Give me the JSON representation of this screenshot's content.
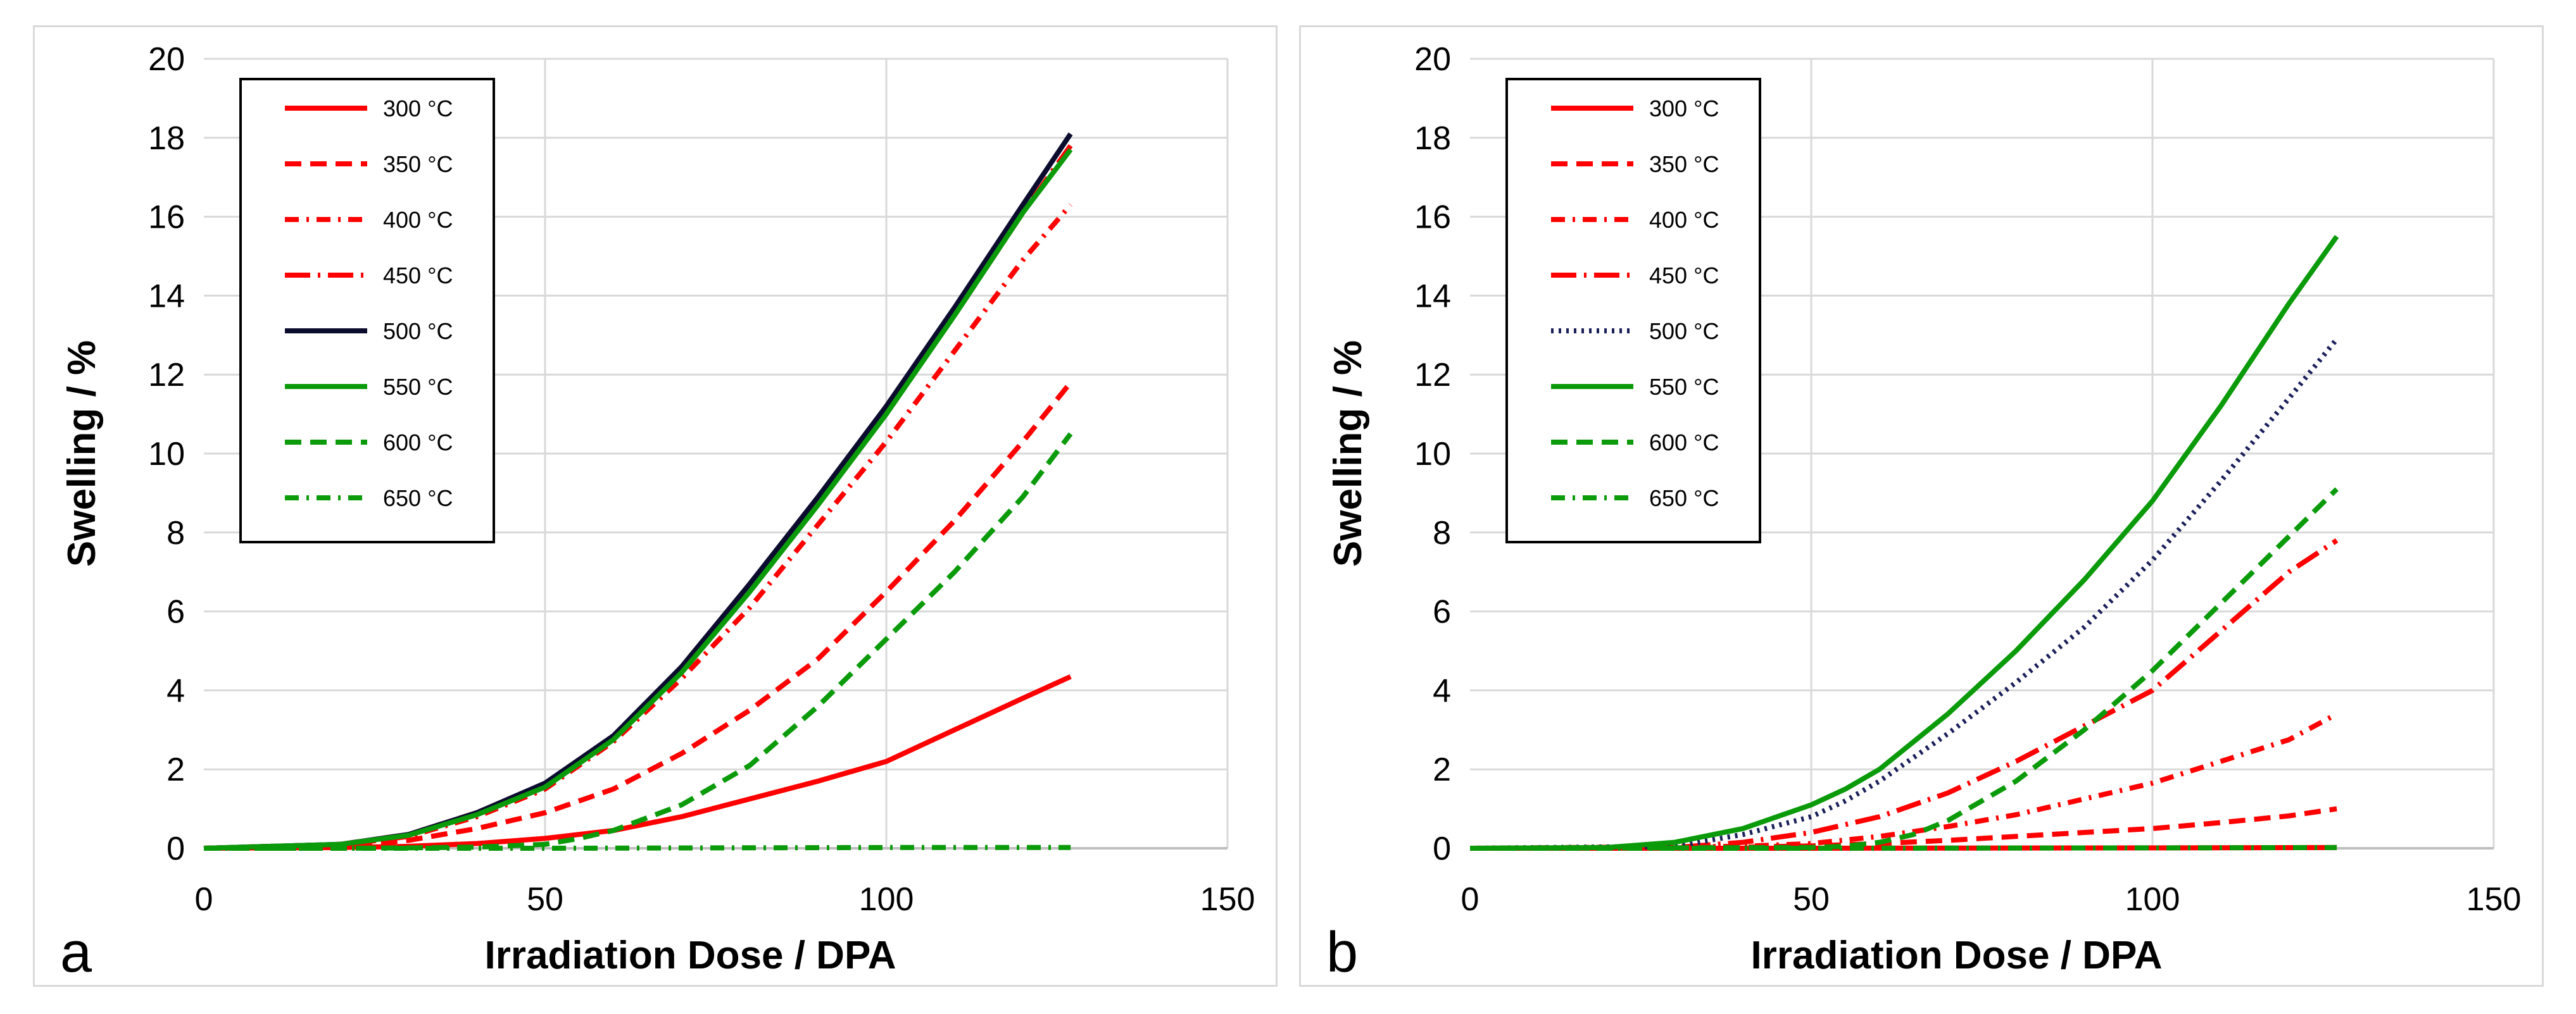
{
  "chart_data": [
    {
      "type": "line",
      "panel_label": "a",
      "xlabel": "Irradiation Dose / DPA",
      "ylabel": "Swelling / %",
      "xlim": [
        0,
        150
      ],
      "ylim": [
        0,
        20
      ],
      "xticks": [
        0,
        50,
        100,
        150
      ],
      "yticks": [
        0,
        2,
        4,
        6,
        8,
        10,
        12,
        14,
        16,
        18,
        20
      ],
      "grid": true,
      "legend_position": "top-left",
      "series": [
        {
          "name": "300 °C",
          "color": "#ff0000",
          "dash": "solid",
          "x": [
            0,
            20,
            30,
            40,
            50,
            60,
            70,
            80,
            90,
            100,
            110,
            120,
            127
          ],
          "y": [
            0,
            0.02,
            0.05,
            0.12,
            0.25,
            0.45,
            0.8,
            1.25,
            1.7,
            2.2,
            3.0,
            3.8,
            4.35
          ]
        },
        {
          "name": "350 °C",
          "color": "#ff0000",
          "dash": "dashed",
          "x": [
            0,
            20,
            30,
            40,
            50,
            60,
            70,
            80,
            90,
            100,
            110,
            120,
            127
          ],
          "y": [
            0,
            0.05,
            0.2,
            0.5,
            0.9,
            1.5,
            2.4,
            3.5,
            4.8,
            6.5,
            8.3,
            10.3,
            11.8
          ]
        },
        {
          "name": "400 °C",
          "color": "#ff0000",
          "dash": "dashdot",
          "x": [
            0,
            20,
            30,
            40,
            50,
            60,
            70,
            80,
            90,
            100,
            110,
            120,
            127
          ],
          "y": [
            0,
            0.08,
            0.3,
            0.8,
            1.5,
            2.7,
            4.3,
            6.1,
            8.2,
            10.3,
            12.6,
            14.9,
            16.3
          ]
        },
        {
          "name": "450 °C",
          "color": "#ff0000",
          "dash": "longdashdot",
          "x": [
            0,
            20,
            30,
            40,
            50,
            60,
            70,
            80,
            90,
            100,
            110,
            120,
            127
          ],
          "y": [
            0,
            0.1,
            0.35,
            0.9,
            1.6,
            2.8,
            4.5,
            6.6,
            8.8,
            11.1,
            13.5,
            16.1,
            17.8
          ]
        },
        {
          "name": "500 °C",
          "color": "#0b0b2e",
          "dash": "solid",
          "x": [
            0,
            20,
            30,
            40,
            50,
            60,
            70,
            80,
            90,
            100,
            110,
            120,
            127
          ],
          "y": [
            0,
            0.1,
            0.35,
            0.9,
            1.65,
            2.85,
            4.6,
            6.7,
            8.9,
            11.2,
            13.7,
            16.3,
            18.1
          ]
        },
        {
          "name": "550 °C",
          "color": "#0a9a0a",
          "dash": "solid",
          "x": [
            0,
            20,
            30,
            40,
            50,
            60,
            70,
            80,
            90,
            100,
            110,
            120,
            127
          ],
          "y": [
            0,
            0.1,
            0.33,
            0.85,
            1.55,
            2.75,
            4.45,
            6.5,
            8.7,
            11.0,
            13.5,
            16.1,
            17.7
          ]
        },
        {
          "name": "600 °C",
          "color": "#0a9a0a",
          "dash": "dashed",
          "x": [
            0,
            20,
            30,
            40,
            50,
            55,
            60,
            70,
            80,
            90,
            100,
            110,
            120,
            127
          ],
          "y": [
            0,
            0,
            0.01,
            0.03,
            0.1,
            0.25,
            0.45,
            1.1,
            2.1,
            3.6,
            5.3,
            7.0,
            8.9,
            10.5
          ]
        },
        {
          "name": "650 °C",
          "color": "#0a9a0a",
          "dash": "dashdot",
          "x": [
            0,
            50,
            100,
            127
          ],
          "y": [
            0,
            0,
            0.02,
            0.02
          ]
        }
      ]
    },
    {
      "type": "line",
      "panel_label": "b",
      "xlabel": "Irradiation Dose / DPA",
      "ylabel": "Swelling / %",
      "xlim": [
        0,
        150
      ],
      "ylim": [
        0,
        20
      ],
      "xticks": [
        0,
        50,
        100,
        150
      ],
      "yticks": [
        0,
        2,
        4,
        6,
        8,
        10,
        12,
        14,
        16,
        18,
        20
      ],
      "grid": true,
      "legend_position": "top-left",
      "series": [
        {
          "name": "300 °C",
          "color": "#ff0000",
          "dash": "solid",
          "x": [
            0,
            50,
            100,
            127
          ],
          "y": [
            0,
            0,
            0.01,
            0.02
          ]
        },
        {
          "name": "350 °C",
          "color": "#ff0000",
          "dash": "dashed",
          "x": [
            0,
            30,
            40,
            50,
            60,
            70,
            80,
            90,
            100,
            110,
            120,
            127
          ],
          "y": [
            0,
            0.01,
            0.03,
            0.06,
            0.12,
            0.2,
            0.3,
            0.4,
            0.5,
            0.65,
            0.82,
            1.0
          ]
        },
        {
          "name": "400 °C",
          "color": "#ff0000",
          "dash": "dashdot",
          "x": [
            0,
            40,
            50,
            60,
            70,
            80,
            90,
            100,
            110,
            120,
            127
          ],
          "y": [
            0,
            0.05,
            0.12,
            0.3,
            0.55,
            0.85,
            1.25,
            1.65,
            2.2,
            2.75,
            3.4
          ]
        },
        {
          "name": "450 °C",
          "color": "#ff0000",
          "dash": "longdashdot",
          "x": [
            0,
            30,
            40,
            50,
            60,
            70,
            80,
            90,
            100,
            110,
            120,
            127
          ],
          "y": [
            0,
            0.02,
            0.15,
            0.4,
            0.8,
            1.4,
            2.2,
            3.1,
            4.0,
            5.5,
            7.0,
            7.8
          ]
        },
        {
          "name": "500 °C",
          "color": "#1a1f5a",
          "dash": "dotted",
          "x": [
            0,
            30,
            40,
            50,
            55,
            60,
            70,
            80,
            90,
            100,
            110,
            120,
            127
          ],
          "y": [
            0,
            0.05,
            0.35,
            0.8,
            1.2,
            1.7,
            2.9,
            4.2,
            5.6,
            7.3,
            9.3,
            11.4,
            12.9
          ]
        },
        {
          "name": "550 °C",
          "color": "#0a9a0a",
          "dash": "solid",
          "x": [
            0,
            20,
            30,
            40,
            50,
            55,
            60,
            70,
            80,
            90,
            100,
            110,
            120,
            127
          ],
          "y": [
            0,
            0.02,
            0.15,
            0.5,
            1.1,
            1.5,
            2.0,
            3.4,
            5.0,
            6.8,
            8.8,
            11.2,
            13.8,
            15.5
          ]
        },
        {
          "name": "600 °C",
          "color": "#0a9a0a",
          "dash": "dashed",
          "x": [
            0,
            50,
            55,
            60,
            65,
            70,
            80,
            90,
            100,
            110,
            120,
            127
          ],
          "y": [
            0,
            0.02,
            0.05,
            0.15,
            0.35,
            0.7,
            1.7,
            3.0,
            4.5,
            6.2,
            7.9,
            9.1
          ]
        },
        {
          "name": "650 °C",
          "color": "#0a9a0a",
          "dash": "dashdot",
          "x": [
            0,
            50,
            100,
            127
          ],
          "y": [
            0,
            0,
            0.01,
            0.02
          ]
        }
      ]
    }
  ]
}
